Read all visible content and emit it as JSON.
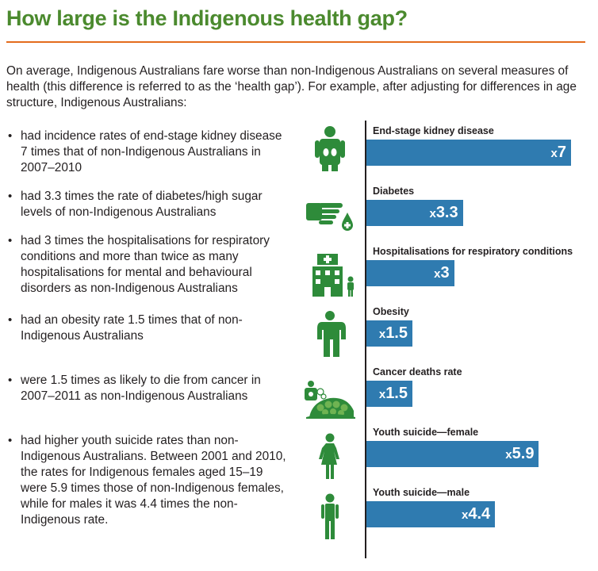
{
  "title": "How large is the Indigenous health gap?",
  "intro": "On average, Indigenous Australians fare worse than non-Indigenous Australians on several measures of health (this difference is referred to as the ‘health gap’). For example, after adjusting for differences in age structure, Indigenous Australians:",
  "bullet_marker": "•",
  "bullets": [
    "had incidence rates of end-stage kidney disease 7 times that of non-Indigenous Australians in 2007–2010",
    "had 3.3 times the rate of diabetes/high sugar levels of non-Indigenous Australians",
    "had 3 times the hospitalisations for respiratory conditions and more than twice as many hospitalisations for mental and behavioural disorders as non-Indigenous Australians",
    "had an obesity rate 1.5 times that of non-Indigenous Australians",
    "were 1.5 times as likely to die from cancer in 2007–2011 as non-Indigenous Australians",
    "had higher youth suicide rates than non-Indigenous Australians. Between 2001 and 2010, the rates for Indigenous females aged 15–19 were 5.9 times those of non-Indigenous females, while for males it was 4.4 times the non-Indigenous rate."
  ],
  "icons": [
    "kidney-person-icon",
    "hand-blood-drop-icon",
    "hospital-person-icon",
    "obese-person-icon",
    "cancer-cells-icon",
    "female-person-icon",
    "male-person-icon"
  ],
  "colors": {
    "title": "#4b8a2e",
    "rule": "#e36c1d",
    "bar": "#2f7bb0",
    "icon": "#2e8b3a"
  },
  "chart_data": {
    "type": "bar",
    "orientation": "horizontal",
    "categories": [
      "End-stage kidney disease",
      "Diabetes",
      "Hospitalisations for respiratory conditions",
      "Obesity",
      "Cancer deaths rate",
      "Youth suicide—female",
      "Youth suicide—male"
    ],
    "values": [
      7,
      3.3,
      3,
      1.5,
      1.5,
      5.9,
      4.4
    ],
    "value_labels": [
      "7",
      "3.3",
      "3",
      "1.5",
      "1.5",
      "5.9",
      "4.4"
    ],
    "value_prefix": "x",
    "xlim": [
      0,
      7
    ]
  }
}
